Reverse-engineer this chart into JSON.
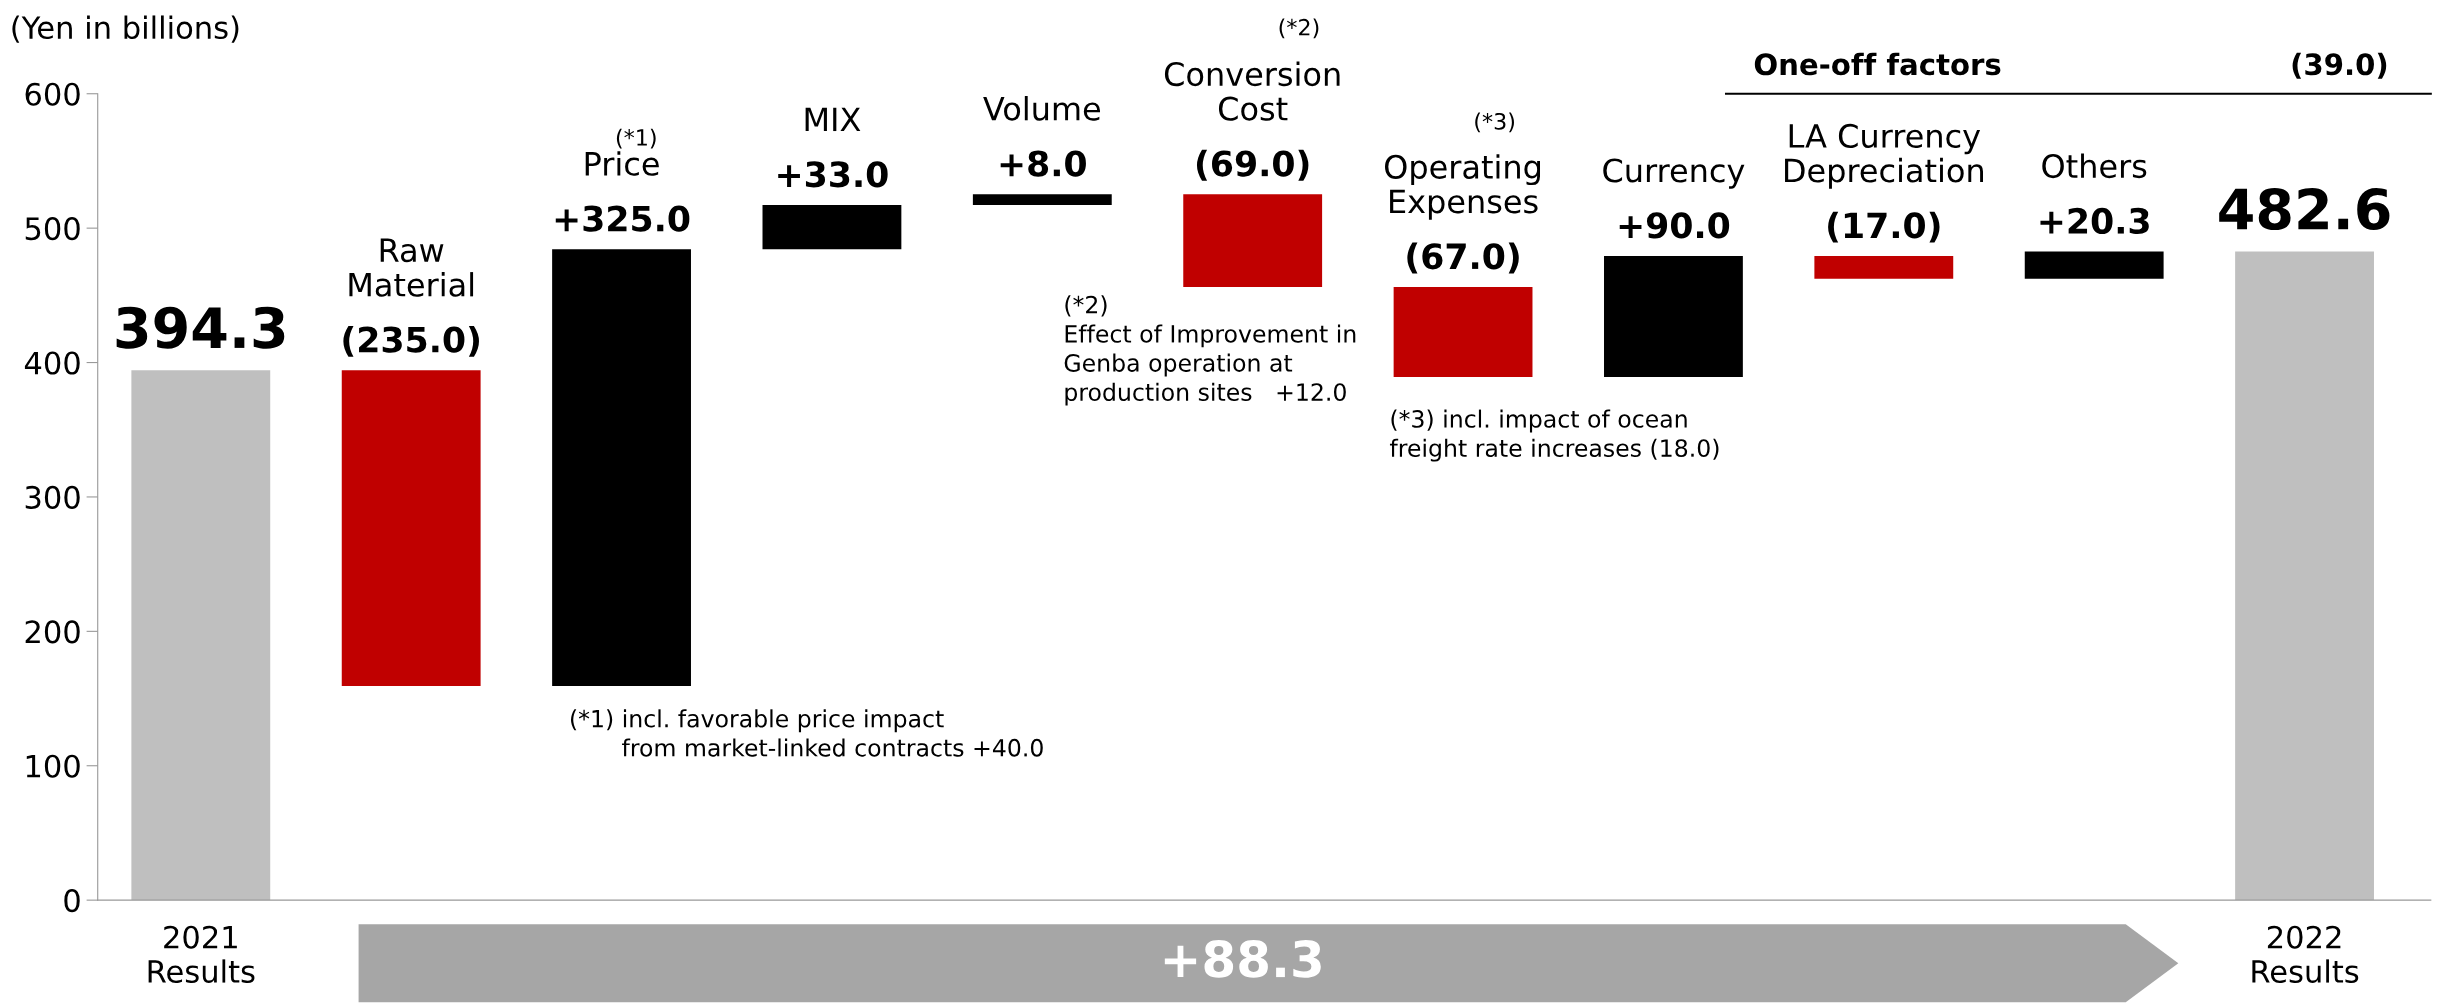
{
  "chart_data": {
    "type": "bar",
    "ylabel": "(Yen in billions)",
    "categories": [
      "2021\nResults",
      "Raw\nMaterial",
      "Price",
      "MIX",
      "Volume",
      "Conversion\nCost",
      "Operating\nExpenses",
      "Currency",
      "LA Currency\nDepreciation",
      "Others",
      "2022\nResults"
    ],
    "values": [
      394.3,
      -235.0,
      325.0,
      33.0,
      8.0,
      -69.0,
      -67.0,
      90.0,
      -17.0,
      20.3,
      482.6
    ],
    "base": [
      0,
      394.3,
      159.3,
      484.3,
      517.3,
      525.3,
      456.3,
      389.3,
      479.3,
      462.3,
      0
    ],
    "colors": [
      "#bfbfbf",
      "#c00000",
      "#000000",
      "#000000",
      "#000000",
      "#c00000",
      "#c00000",
      "#000000",
      "#c00000",
      "#000000",
      "#bfbfbf"
    ],
    "value_labels": [
      "394.3",
      "(235.0)",
      "+325.0",
      "+33.0",
      "+8.0",
      "(69.0)",
      "(67.0)",
      "+90.0",
      "(17.0)",
      "+20.3",
      "482.6"
    ],
    "ylim": [
      0,
      600
    ],
    "yticks": [
      0,
      100,
      200,
      300,
      400,
      500,
      600
    ],
    "grid": false,
    "annotations": [
      "(*1)",
      "(*2)",
      "(*3)",
      "(*1) incl. favorable price impact\n       from market-linked contracts +40.0",
      "(*2)\nEffect of Improvement in\nGenba operation at\nproduction sites   +12.0",
      "(*3) incl. impact of ocean\nfreight rate increases (18.0)",
      "One-off factors",
      "(39.0)",
      "+88.3"
    ]
  }
}
